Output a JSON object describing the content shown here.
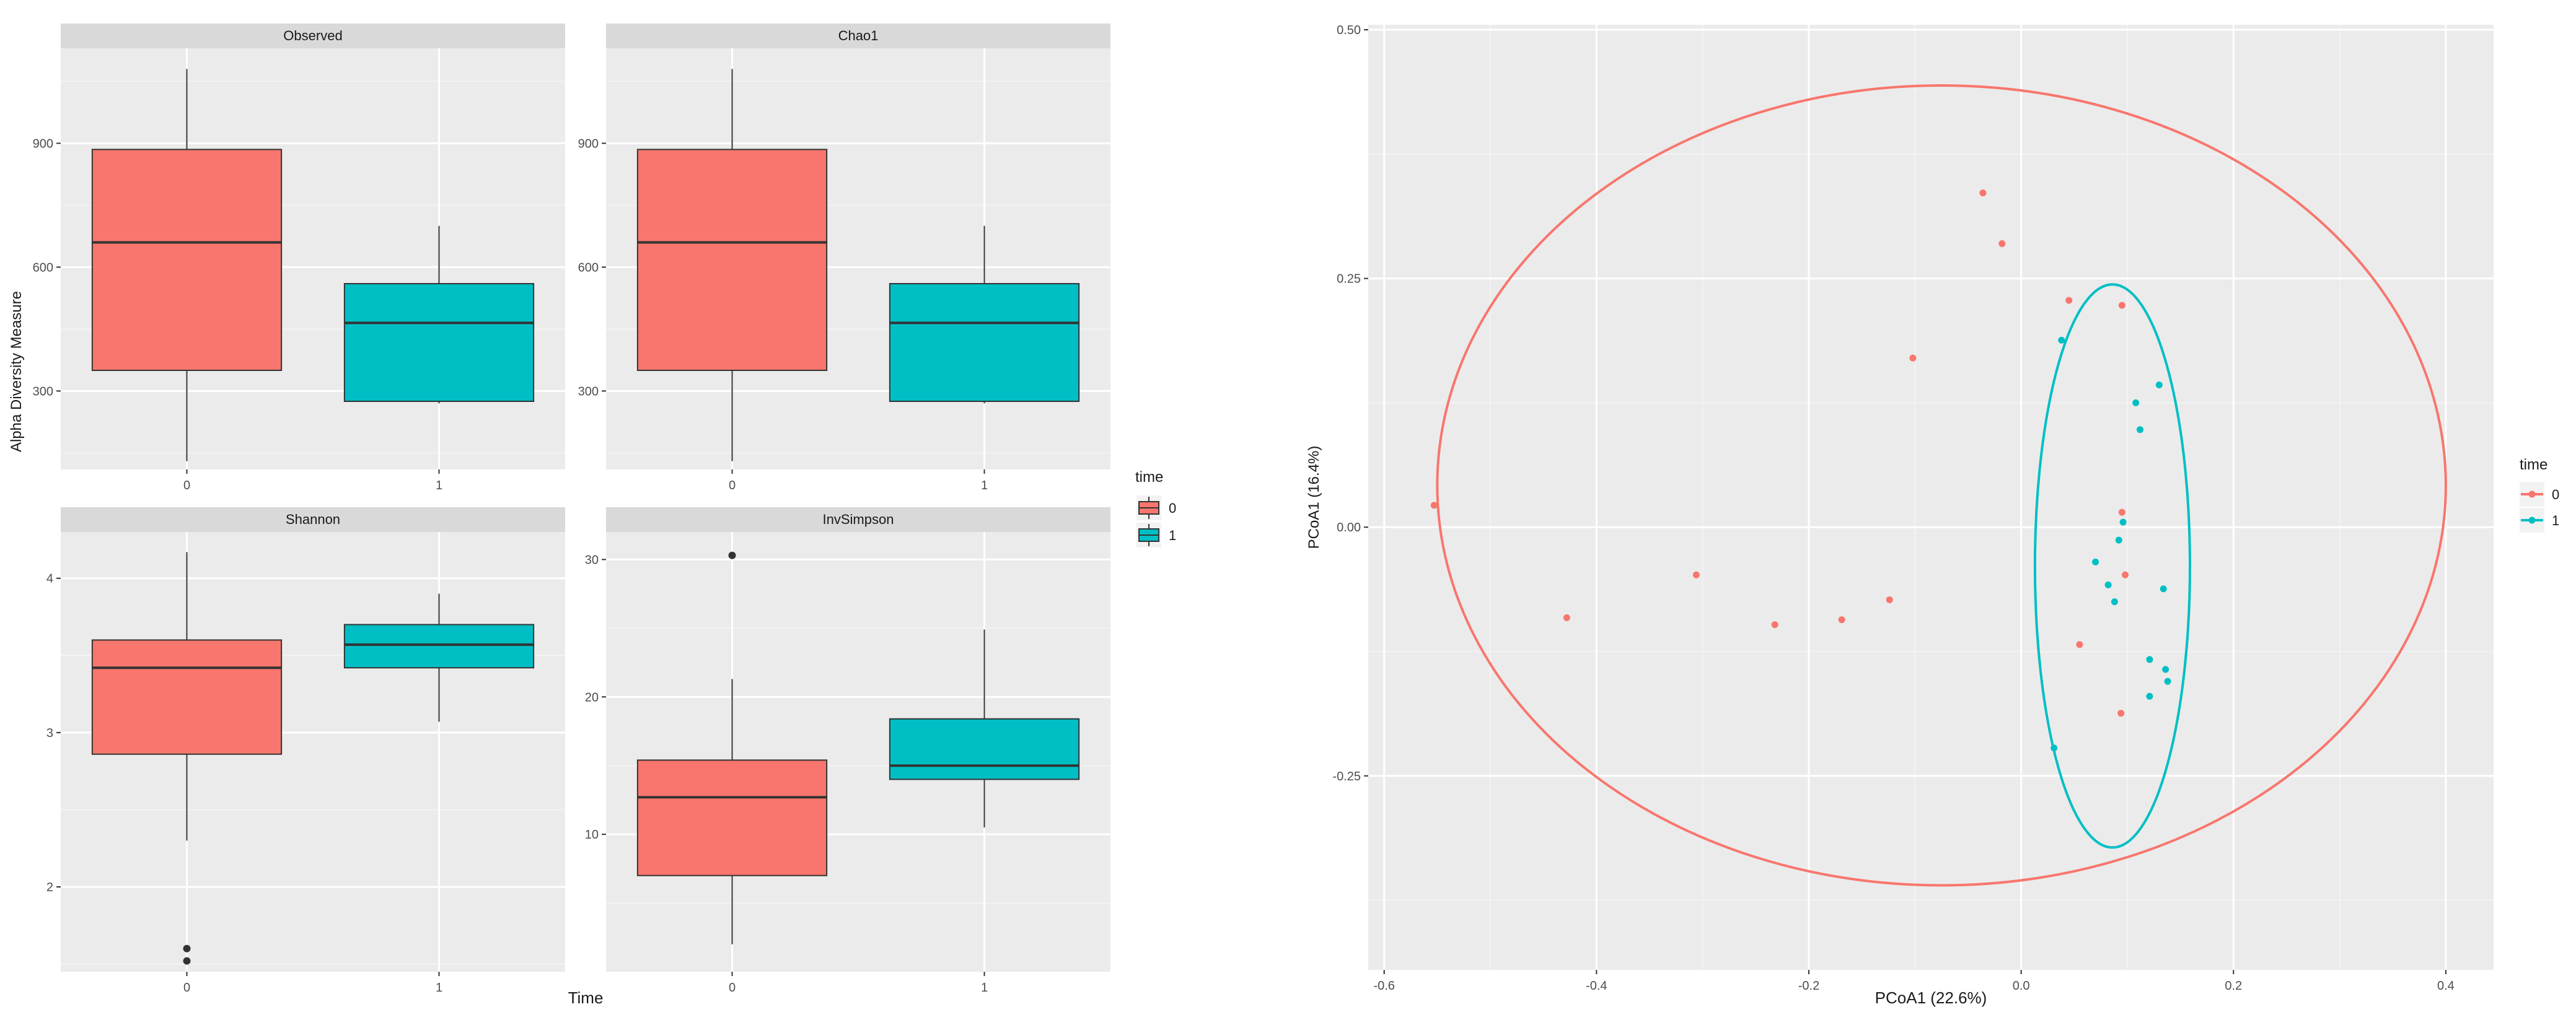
{
  "colors": {
    "group0": "#f8766d",
    "group1": "#00bfc4",
    "panel": "#ebebeb",
    "strip": "#d9d9d9",
    "grid_major": "#ffffff",
    "axis_text": "#4d4d4d",
    "box_line": "#333333"
  },
  "left_figure": {
    "ylabel": "Alpha Diversity Measure",
    "xlabel": "Time",
    "legend": {
      "title": "time",
      "labels": [
        "0",
        "1"
      ]
    }
  },
  "right_figure": {
    "xlabel": "PCoA1 (22.6%)",
    "ylabel": "PCoA1 (16.4%)",
    "legend": {
      "title": "time",
      "labels": [
        "0",
        "1"
      ]
    }
  },
  "chart_data": [
    {
      "type": "box",
      "title": "Observed",
      "categories": [
        "0",
        "1"
      ],
      "ylim": [
        110,
        1130
      ],
      "yticks": [
        300,
        600,
        900
      ],
      "ytick_labels": [
        "300",
        "600",
        "900"
      ],
      "boxes": [
        {
          "group": "0",
          "min": 130,
          "q1": 350,
          "median": 660,
          "q3": 885,
          "max": 1080,
          "outliers": []
        },
        {
          "group": "1",
          "min": 270,
          "q1": 275,
          "median": 465,
          "q3": 560,
          "max": 700,
          "outliers": []
        }
      ]
    },
    {
      "type": "box",
      "title": "Chao1",
      "categories": [
        "0",
        "1"
      ],
      "ylim": [
        110,
        1130
      ],
      "yticks": [
        300,
        600,
        900
      ],
      "ytick_labels": [
        "300",
        "600",
        "900"
      ],
      "boxes": [
        {
          "group": "0",
          "min": 130,
          "q1": 350,
          "median": 660,
          "q3": 885,
          "max": 1080,
          "outliers": []
        },
        {
          "group": "1",
          "min": 270,
          "q1": 275,
          "median": 465,
          "q3": 560,
          "max": 700,
          "outliers": []
        }
      ]
    },
    {
      "type": "box",
      "title": "Shannon",
      "categories": [
        "0",
        "1"
      ],
      "ylim": [
        1.45,
        4.3
      ],
      "yticks": [
        2,
        3,
        4
      ],
      "ytick_labels": [
        "2",
        "3",
        "4"
      ],
      "boxes": [
        {
          "group": "0",
          "min": 2.3,
          "q1": 2.86,
          "median": 3.42,
          "q3": 3.6,
          "max": 4.17,
          "outliers": [
            1.6,
            1.52
          ]
        },
        {
          "group": "1",
          "min": 3.07,
          "q1": 3.42,
          "median": 3.57,
          "q3": 3.7,
          "max": 3.9,
          "outliers": []
        }
      ]
    },
    {
      "type": "box",
      "title": "InvSimpson",
      "categories": [
        "0",
        "1"
      ],
      "ylim": [
        0,
        32
      ],
      "yticks": [
        10,
        20,
        30
      ],
      "ytick_labels": [
        "10",
        "20",
        "30"
      ],
      "boxes": [
        {
          "group": "0",
          "min": 2,
          "q1": 7,
          "median": 12.7,
          "q3": 15.4,
          "max": 21.3,
          "outliers": [
            30.3
          ]
        },
        {
          "group": "1",
          "min": 10.5,
          "q1": 14,
          "median": 15,
          "q3": 18.4,
          "max": 24.9,
          "outliers": []
        }
      ]
    },
    {
      "type": "scatter",
      "title": "",
      "xlabel": "PCoA1 (22.6%)",
      "ylabel": "PCoA1 (16.4%)",
      "xlim": [
        -0.615,
        0.445
      ],
      "ylim": [
        -0.445,
        0.505
      ],
      "xticks": [
        -0.6,
        -0.4,
        -0.2,
        0.0,
        0.2,
        0.4
      ],
      "xtick_labels": [
        "-0.6",
        "-0.4",
        "-0.2",
        "0.0",
        "0.2",
        "0.4"
      ],
      "yticks": [
        -0.25,
        0.0,
        0.25,
        0.5
      ],
      "ytick_labels": [
        "-0.25",
        "0.00",
        "0.25",
        "0.50"
      ],
      "series": [
        {
          "name": "0",
          "points": [
            [
              -0.553,
              0.022
            ],
            [
              -0.428,
              -0.091
            ],
            [
              -0.306,
              -0.048
            ],
            [
              -0.232,
              -0.098
            ],
            [
              -0.169,
              -0.093
            ],
            [
              -0.124,
              -0.073
            ],
            [
              -0.102,
              0.17
            ],
            [
              -0.036,
              0.336
            ],
            [
              -0.018,
              0.285
            ],
            [
              0.045,
              0.228
            ],
            [
              0.095,
              0.223
            ],
            [
              0.055,
              -0.118
            ],
            [
              0.095,
              0.015
            ],
            [
              0.098,
              -0.048
            ],
            [
              0.094,
              -0.187
            ]
          ],
          "ellipse": {
            "center": [
              -0.075,
              0.042
            ],
            "semi_x": 0.475,
            "semi_y": 0.402,
            "rotation_deg": 0
          }
        },
        {
          "name": "1",
          "points": [
            [
              0.038,
              0.188
            ],
            [
              0.13,
              0.143
            ],
            [
              0.108,
              0.125
            ],
            [
              0.112,
              0.098
            ],
            [
              0.096,
              0.005
            ],
            [
              0.092,
              -0.013
            ],
            [
              0.07,
              -0.035
            ],
            [
              0.082,
              -0.058
            ],
            [
              0.088,
              -0.075
            ],
            [
              0.134,
              -0.062
            ],
            [
              0.121,
              -0.133
            ],
            [
              0.136,
              -0.143
            ],
            [
              0.138,
              -0.155
            ],
            [
              0.121,
              -0.17
            ],
            [
              0.031,
              -0.222
            ]
          ],
          "ellipse": {
            "center": [
              0.086,
              -0.039
            ],
            "semi_x": 0.073,
            "semi_y": 0.283,
            "rotation_deg": 0
          }
        }
      ]
    }
  ]
}
